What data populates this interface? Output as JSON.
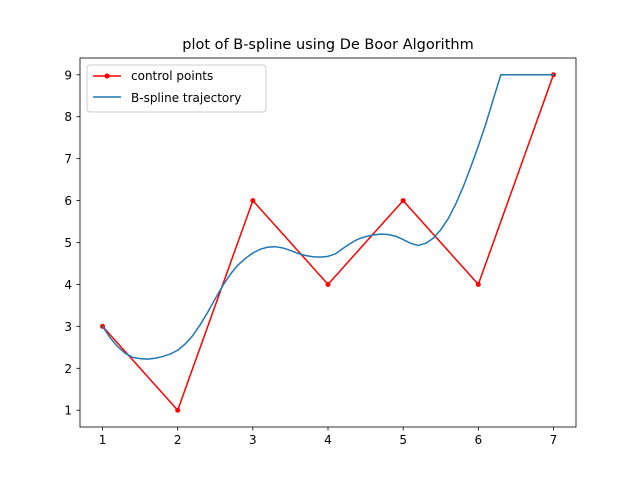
{
  "chart_data": {
    "type": "line",
    "title": "plot of B-spline using De Boor Algorithm",
    "xlabel": "",
    "ylabel": "",
    "xlim": [
      0.7,
      7.3
    ],
    "ylim": [
      0.6,
      9.4
    ],
    "xticks": [
      1,
      2,
      3,
      4,
      5,
      6,
      7
    ],
    "yticks": [
      1,
      2,
      3,
      4,
      5,
      6,
      7,
      8,
      9
    ],
    "grid": false,
    "legend_position": "top-left",
    "series": [
      {
        "name": "control points",
        "color": "#ff0000",
        "marker": "dot",
        "x": [
          1,
          2,
          3,
          4,
          5,
          6,
          7
        ],
        "y": [
          3,
          1,
          6,
          4,
          6,
          4,
          9
        ]
      },
      {
        "name": "B-spline trajectory",
        "color": "#1f77b4",
        "marker": "none",
        "x": [
          1.0,
          1.1,
          1.2,
          1.3,
          1.4,
          1.5,
          1.6,
          1.7,
          1.8,
          1.9,
          2.0,
          2.1,
          2.2,
          2.3,
          2.4,
          2.5,
          2.6,
          2.7,
          2.8,
          2.9,
          3.0,
          3.1,
          3.2,
          3.3,
          3.4,
          3.5,
          3.6,
          3.7,
          3.8,
          3.9,
          4.0,
          4.1,
          4.2,
          4.3,
          4.4,
          4.5,
          4.6,
          4.7,
          4.8,
          4.9,
          5.0,
          5.1,
          5.2,
          5.3,
          5.4,
          5.5,
          5.6,
          5.7,
          5.8,
          5.9,
          6.0,
          6.1,
          6.2,
          6.3,
          6.4,
          6.5,
          6.6,
          6.7,
          6.8,
          6.9,
          7.0
        ],
        "y": [
          3.0,
          2.73,
          2.52,
          2.36,
          2.26,
          2.23,
          2.22,
          2.24,
          2.28,
          2.34,
          2.43,
          2.58,
          2.78,
          3.04,
          3.34,
          3.66,
          3.97,
          4.24,
          4.46,
          4.62,
          4.75,
          4.84,
          4.89,
          4.9,
          4.87,
          4.81,
          4.74,
          4.69,
          4.66,
          4.65,
          4.67,
          4.73,
          4.86,
          4.98,
          5.08,
          5.14,
          5.18,
          5.2,
          5.19,
          5.15,
          5.07,
          4.98,
          4.93,
          4.98,
          5.1,
          5.3,
          5.57,
          5.92,
          6.33,
          6.8,
          7.3,
          7.83,
          8.42,
          9.0,
          9.0,
          9.0,
          9.0,
          9.0,
          9.0,
          9.0,
          9.0
        ]
      }
    ]
  }
}
